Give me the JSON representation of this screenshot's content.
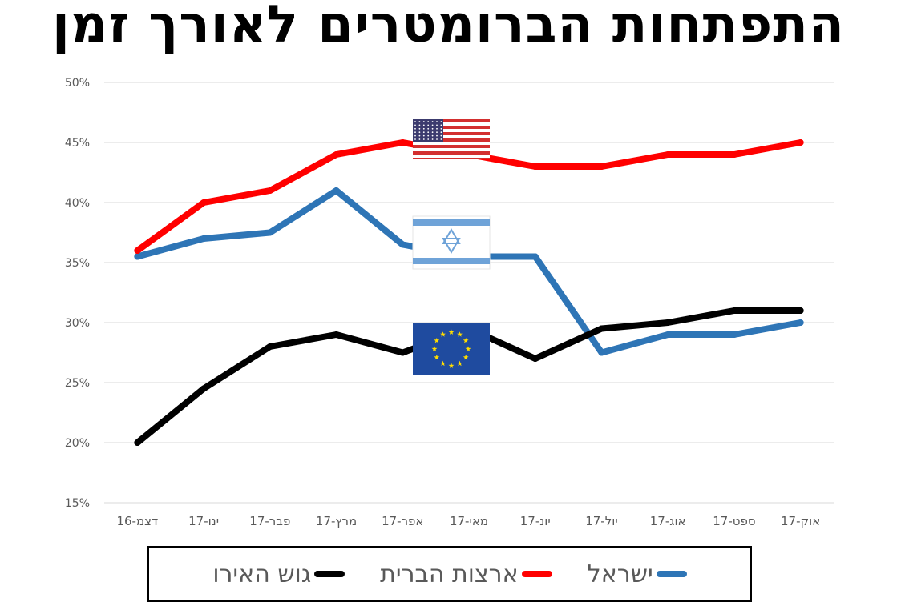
{
  "title": "התפתחות הברומטרים לאורך זמן",
  "colors": {
    "israel": "#2e75b6",
    "usa": "#ff0000",
    "eurozone": "#000000",
    "grid": "#d9d9d9",
    "tick_text": "#595959"
  },
  "chart_data": {
    "type": "line",
    "title": "התפתחות הברומטרים לאורך זמן",
    "xlabel": "",
    "ylabel": "",
    "categories": [
      "דצמ-16",
      "ינו-17",
      "פבר-17",
      "מרץ-17",
      "אפר-17",
      "מאי-17",
      "יונ-17",
      "יול-17",
      "אוג-17",
      "ספט-17",
      "אוק-17"
    ],
    "ylim": [
      0.15,
      0.5
    ],
    "yticks": [
      0.5,
      0.45,
      0.4,
      0.35,
      0.3,
      0.25,
      0.2,
      0.15
    ],
    "ytick_labels": [
      "50%",
      "45%",
      "40%",
      "35%",
      "30%",
      "25%",
      "20%",
      "15%"
    ],
    "grid": true,
    "legend_position": "bottom",
    "series": [
      {
        "name": "ישראל",
        "color": "#2e75b6",
        "icon": "israel-flag-icon",
        "values": [
          0.355,
          0.37,
          0.375,
          0.41,
          0.365,
          0.355,
          0.355,
          0.275,
          0.29,
          0.29,
          0.3
        ]
      },
      {
        "name": "ארצות הברית",
        "color": "#ff0000",
        "icon": "usa-flag-icon",
        "values": [
          0.36,
          0.4,
          0.41,
          0.44,
          0.45,
          0.44,
          0.43,
          0.43,
          0.44,
          0.44,
          0.45
        ]
      },
      {
        "name": "גוש האירו",
        "color": "#000000",
        "icon": "eu-flag-icon",
        "values": [
          0.2,
          0.245,
          0.28,
          0.29,
          0.275,
          0.295,
          0.27,
          0.295,
          0.3,
          0.31,
          0.31
        ]
      }
    ]
  },
  "legend": [
    {
      "label": "ישראל",
      "color": "#2e75b6"
    },
    {
      "label": "ארצות הברית",
      "color": "#ff0000"
    },
    {
      "label": "גוש האירו",
      "color": "#000000"
    }
  ]
}
